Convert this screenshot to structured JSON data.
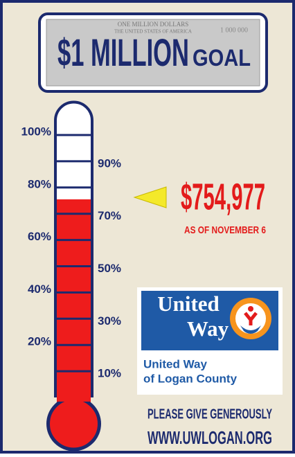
{
  "chart_data": {
    "type": "thermometer",
    "title": "$1 MILLION",
    "subtitle": "GOAL",
    "bill_texts": [
      "ONE MILLION DOLLARS",
      "THE UNITED STATES OF AMERICA",
      "1 000 000"
    ],
    "values": [
      754977
    ],
    "value_labels": [
      "$754,977"
    ],
    "color": "#ee1c1c",
    "ylim": [
      0,
      1000000
    ],
    "yticks": [
      {
        "value": 100000,
        "label": "10%"
      },
      {
        "value": 200000,
        "label": "20%"
      },
      {
        "value": 300000,
        "label": "30%"
      },
      {
        "value": 400000,
        "label": "40%"
      },
      {
        "value": 500000,
        "label": "50%"
      },
      {
        "value": 600000,
        "label": "60%"
      },
      {
        "value": 700000,
        "label": "70%"
      },
      {
        "value": 800000,
        "label": "80%"
      },
      {
        "value": 900000,
        "label": "90%"
      },
      {
        "value": 1000000,
        "label": "100%"
      }
    ],
    "annotations": [
      "AS OF NOVEMBER 6",
      "PLEASE GIVE GENEROUSLY",
      "WWW.UWLOGAN.ORG"
    ],
    "logo": {
      "wordmark": [
        "United",
        "Way"
      ],
      "caption": [
        "United Way",
        "of Logan County"
      ]
    }
  }
}
